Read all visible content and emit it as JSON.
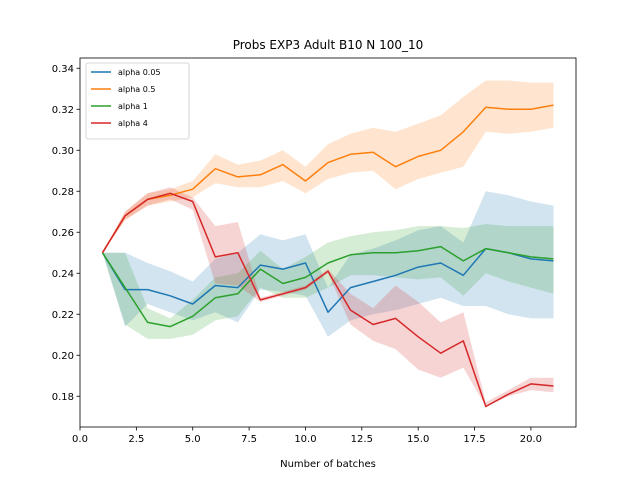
{
  "chart_data": {
    "type": "line",
    "title": "Probs EXP3 Adult B10 N 100_10",
    "xlabel": "Number of batches",
    "ylabel": "",
    "xlim": [
      0,
      22
    ],
    "ylim": [
      0.165,
      0.345
    ],
    "xticks": [
      0.0,
      2.5,
      5.0,
      7.5,
      10.0,
      12.5,
      15.0,
      17.5,
      20.0
    ],
    "xtick_labels": [
      "0.0",
      "2.5",
      "5.0",
      "7.5",
      "10.0",
      "12.5",
      "15.0",
      "17.5",
      "20.0"
    ],
    "yticks": [
      0.18,
      0.2,
      0.22,
      0.24,
      0.26,
      0.28,
      0.3,
      0.32,
      0.34
    ],
    "ytick_labels": [
      "0.18",
      "0.20",
      "0.22",
      "0.24",
      "0.26",
      "0.28",
      "0.30",
      "0.32",
      "0.34"
    ],
    "grid": false,
    "legend_position": "top-left",
    "x": [
      1,
      2,
      3,
      4,
      5,
      6,
      7,
      8,
      9,
      10,
      11,
      12,
      13,
      14,
      15,
      16,
      17,
      18,
      19,
      20,
      21
    ],
    "series": [
      {
        "name": "alpha 0.05",
        "color": "#1f77b4",
        "values": [
          0.25,
          0.232,
          0.232,
          0.229,
          0.225,
          0.234,
          0.233,
          0.244,
          0.242,
          0.245,
          0.221,
          0.233,
          0.236,
          0.239,
          0.243,
          0.245,
          0.239,
          0.252,
          0.25,
          0.247,
          0.246
        ],
        "lower": [
          0.25,
          0.214,
          0.225,
          0.221,
          0.217,
          0.221,
          0.216,
          0.232,
          0.231,
          0.229,
          0.209,
          0.217,
          0.22,
          0.222,
          0.225,
          0.228,
          0.224,
          0.224,
          0.22,
          0.218,
          0.218
        ],
        "upper": [
          0.25,
          0.25,
          0.245,
          0.241,
          0.236,
          0.247,
          0.25,
          0.259,
          0.256,
          0.259,
          0.233,
          0.249,
          0.252,
          0.256,
          0.261,
          0.263,
          0.255,
          0.28,
          0.278,
          0.275,
          0.273
        ]
      },
      {
        "name": "alpha 0.5",
        "color": "#ff7f0e",
        "values": [
          0.25,
          0.268,
          0.276,
          0.278,
          0.281,
          0.291,
          0.287,
          0.288,
          0.293,
          0.285,
          0.294,
          0.298,
          0.299,
          0.292,
          0.297,
          0.3,
          0.309,
          0.321,
          0.32,
          0.32,
          0.322
        ],
        "lower": [
          0.25,
          0.266,
          0.273,
          0.275,
          0.277,
          0.284,
          0.282,
          0.282,
          0.285,
          0.279,
          0.286,
          0.289,
          0.29,
          0.281,
          0.286,
          0.289,
          0.292,
          0.309,
          0.308,
          0.309,
          0.311
        ],
        "upper": [
          0.25,
          0.27,
          0.279,
          0.281,
          0.285,
          0.298,
          0.293,
          0.295,
          0.3,
          0.292,
          0.303,
          0.308,
          0.311,
          0.309,
          0.313,
          0.317,
          0.326,
          0.334,
          0.334,
          0.333,
          0.333
        ]
      },
      {
        "name": "alpha 1",
        "color": "#2ca02c",
        "values": [
          0.25,
          0.233,
          0.216,
          0.214,
          0.219,
          0.228,
          0.23,
          0.242,
          0.235,
          0.238,
          0.245,
          0.249,
          0.25,
          0.25,
          0.251,
          0.253,
          0.246,
          0.252,
          0.25,
          0.248,
          0.247
        ],
        "lower": [
          0.25,
          0.215,
          0.208,
          0.208,
          0.21,
          0.217,
          0.219,
          0.233,
          0.228,
          0.228,
          0.233,
          0.239,
          0.239,
          0.238,
          0.237,
          0.238,
          0.229,
          0.24,
          0.236,
          0.233,
          0.23
        ],
        "upper": [
          0.25,
          0.25,
          0.223,
          0.218,
          0.227,
          0.238,
          0.24,
          0.251,
          0.242,
          0.248,
          0.255,
          0.258,
          0.26,
          0.261,
          0.263,
          0.263,
          0.262,
          0.264,
          0.263,
          0.263,
          0.263
        ]
      },
      {
        "name": "alpha 4",
        "color": "#d62728",
        "values": [
          0.25,
          0.268,
          0.276,
          0.279,
          0.275,
          0.248,
          0.25,
          0.227,
          0.23,
          0.233,
          0.241,
          0.222,
          0.215,
          0.218,
          0.209,
          0.201,
          0.207,
          0.175,
          0.181,
          0.186,
          0.185
        ],
        "lower": [
          0.25,
          0.266,
          0.273,
          0.276,
          0.271,
          0.235,
          0.234,
          0.226,
          0.229,
          0.232,
          0.24,
          0.215,
          0.207,
          0.203,
          0.193,
          0.189,
          0.194,
          0.175,
          0.18,
          0.183,
          0.182
        ],
        "upper": [
          0.25,
          0.27,
          0.279,
          0.282,
          0.277,
          0.263,
          0.265,
          0.228,
          0.231,
          0.234,
          0.242,
          0.23,
          0.223,
          0.234,
          0.226,
          0.216,
          0.221,
          0.177,
          0.183,
          0.189,
          0.189
        ]
      }
    ]
  }
}
